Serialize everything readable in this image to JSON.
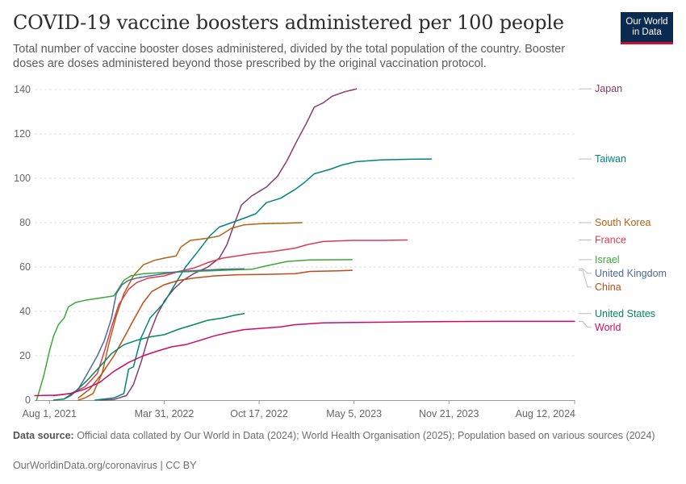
{
  "header": {
    "title": "COVID-19 vaccine boosters administered per 100 people",
    "subtitle": "Total number of vaccine booster doses administered, divided by the total population of the country. Booster doses are doses administered beyond those prescribed by the original vaccination protocol.",
    "logo_line1": "Our World",
    "logo_line2": "in Data"
  },
  "footer": {
    "source_label": "Data source:",
    "source_text": "Official data collated by Our World in Data (2024); World Health Organisation (2025); Population based on various sources (2024)",
    "site": "OurWorldinData.org/coronavirus | CC BY"
  },
  "chart_data": {
    "type": "line",
    "title": "COVID-19 vaccine boosters administered per 100 people",
    "xlabel": "",
    "ylabel": "",
    "ylim": [
      0,
      140
    ],
    "yticks": [
      0,
      20,
      40,
      60,
      80,
      100,
      120,
      140
    ],
    "xlim": [
      "2021-07-01",
      "2024-08-12"
    ],
    "xticks": [
      "2021-08-01",
      "2022-03-31",
      "2022-10-17",
      "2023-05-05",
      "2023-11-21",
      "2024-08-12"
    ],
    "xtick_labels": [
      "Aug 1, 2021",
      "Mar 31, 2022",
      "Oct 17, 2022",
      "May 5, 2023",
      "Nov 21, 2023",
      "Aug 12, 2024"
    ],
    "grid": "horizontal dashed",
    "legend": "right, labels at line ends",
    "series": [
      {
        "name": "Japan",
        "color": "#883a6a",
        "points": [
          [
            "2021-11-15",
            0
          ],
          [
            "2021-12-15",
            0.3
          ],
          [
            "2022-01-10",
            2
          ],
          [
            "2022-01-25",
            7
          ],
          [
            "2022-02-10",
            17
          ],
          [
            "2022-02-25",
            28
          ],
          [
            "2022-03-15",
            38
          ],
          [
            "2022-04-01",
            45
          ],
          [
            "2022-04-20",
            50
          ],
          [
            "2022-05-10",
            54
          ],
          [
            "2022-06-01",
            57
          ],
          [
            "2022-07-01",
            60
          ],
          [
            "2022-07-25",
            64
          ],
          [
            "2022-08-10",
            70
          ],
          [
            "2022-08-25",
            79
          ],
          [
            "2022-09-10",
            88
          ],
          [
            "2022-10-01",
            92
          ],
          [
            "2022-11-01",
            96
          ],
          [
            "2022-11-25",
            101
          ],
          [
            "2022-12-15",
            108
          ],
          [
            "2023-01-05",
            117
          ],
          [
            "2023-01-25",
            125
          ],
          [
            "2023-02-10",
            132
          ],
          [
            "2023-03-01",
            134
          ],
          [
            "2023-03-20",
            137
          ],
          [
            "2023-04-15",
            139
          ],
          [
            "2023-05-05",
            140
          ],
          [
            "2023-05-10",
            140.3
          ]
        ]
      },
      {
        "name": "Taiwan",
        "color": "#00847e",
        "points": [
          [
            "2021-11-05",
            0
          ],
          [
            "2021-12-15",
            1
          ],
          [
            "2022-01-05",
            3
          ],
          [
            "2022-01-15",
            14
          ],
          [
            "2022-01-25",
            15
          ],
          [
            "2022-02-10",
            28
          ],
          [
            "2022-03-01",
            37
          ],
          [
            "2022-03-31",
            44
          ],
          [
            "2022-04-25",
            53
          ],
          [
            "2022-05-15",
            60
          ],
          [
            "2022-06-10",
            67
          ],
          [
            "2022-07-05",
            74
          ],
          [
            "2022-07-25",
            78
          ],
          [
            "2022-08-20",
            80
          ],
          [
            "2022-09-15",
            82
          ],
          [
            "2022-10-10",
            84
          ],
          [
            "2022-11-01",
            89
          ],
          [
            "2022-12-01",
            91
          ],
          [
            "2023-01-01",
            95
          ],
          [
            "2023-01-20",
            98
          ],
          [
            "2023-02-10",
            102
          ],
          [
            "2023-03-15",
            104
          ],
          [
            "2023-04-10",
            106
          ],
          [
            "2023-05-10",
            107.5
          ],
          [
            "2023-07-01",
            108.3
          ],
          [
            "2023-09-01",
            108.6
          ],
          [
            "2023-10-15",
            108.7
          ]
        ]
      },
      {
        "name": "South Korea",
        "color": "#b16214",
        "points": [
          [
            "2021-10-01",
            0
          ],
          [
            "2021-10-15",
            1
          ],
          [
            "2021-11-01",
            3
          ],
          [
            "2021-11-20",
            12
          ],
          [
            "2021-12-05",
            26
          ],
          [
            "2021-12-20",
            38
          ],
          [
            "2022-01-05",
            48
          ],
          [
            "2022-01-25",
            56
          ],
          [
            "2022-02-15",
            61
          ],
          [
            "2022-03-10",
            63
          ],
          [
            "2022-03-31",
            64
          ],
          [
            "2022-04-25",
            65
          ],
          [
            "2022-05-05",
            69
          ],
          [
            "2022-05-25",
            72
          ],
          [
            "2022-07-01",
            73
          ],
          [
            "2022-07-25",
            74
          ],
          [
            "2022-08-20",
            77.5
          ],
          [
            "2022-09-15",
            79
          ],
          [
            "2022-10-20",
            79.5
          ],
          [
            "2022-12-15",
            79.8
          ],
          [
            "2023-01-15",
            80
          ]
        ]
      },
      {
        "name": "France",
        "color": "#d73c50",
        "points": [
          [
            "2021-08-10",
            2
          ],
          [
            "2021-09-15",
            3
          ],
          [
            "2021-10-15",
            6
          ],
          [
            "2021-11-10",
            12
          ],
          [
            "2021-11-25",
            22
          ],
          [
            "2021-12-10",
            33
          ],
          [
            "2021-12-25",
            43
          ],
          [
            "2022-01-15",
            50
          ],
          [
            "2022-02-01",
            53
          ],
          [
            "2022-02-25",
            55
          ],
          [
            "2022-03-31",
            56
          ],
          [
            "2022-05-01",
            58
          ],
          [
            "2022-06-01",
            59.5
          ],
          [
            "2022-07-01",
            62
          ],
          [
            "2022-08-01",
            64
          ],
          [
            "2022-09-01",
            65
          ],
          [
            "2022-10-01",
            66
          ],
          [
            "2022-11-15",
            67
          ],
          [
            "2023-01-01",
            68.5
          ],
          [
            "2023-01-25",
            70
          ],
          [
            "2023-03-01",
            71.5
          ],
          [
            "2023-05-01",
            72
          ],
          [
            "2023-07-01",
            72
          ],
          [
            "2023-08-25",
            72.2
          ]
        ]
      },
      {
        "name": "Israel",
        "color": "#38aa34",
        "points": [
          [
            "2021-07-05",
            0
          ],
          [
            "2021-07-20",
            11
          ],
          [
            "2021-08-01",
            22
          ],
          [
            "2021-08-10",
            29
          ],
          [
            "2021-08-20",
            34
          ],
          [
            "2021-09-01",
            37
          ],
          [
            "2021-09-10",
            42
          ],
          [
            "2021-09-25",
            44
          ],
          [
            "2021-10-15",
            45
          ],
          [
            "2021-11-15",
            46
          ],
          [
            "2021-12-15",
            47
          ],
          [
            "2022-01-05",
            54
          ],
          [
            "2022-01-20",
            56
          ],
          [
            "2022-02-15",
            57
          ],
          [
            "2022-03-31",
            57.5
          ],
          [
            "2022-06-01",
            58
          ],
          [
            "2022-08-01",
            58.5
          ],
          [
            "2022-10-01",
            59
          ],
          [
            "2022-11-01",
            60.5
          ],
          [
            "2022-12-15",
            62.5
          ],
          [
            "2023-02-01",
            63.2
          ],
          [
            "2023-05-01",
            63.3
          ]
        ]
      },
      {
        "name": "United Kingdom",
        "color": "#4c6a9c",
        "points": [
          [
            "2021-09-01",
            0.5
          ],
          [
            "2021-09-15",
            2
          ],
          [
            "2021-10-01",
            5
          ],
          [
            "2021-10-20",
            12
          ],
          [
            "2021-11-10",
            20
          ],
          [
            "2021-11-25",
            27
          ],
          [
            "2021-12-10",
            37
          ],
          [
            "2021-12-20",
            48
          ],
          [
            "2022-01-01",
            52
          ],
          [
            "2022-01-15",
            54
          ],
          [
            "2022-02-01",
            55
          ],
          [
            "2022-03-01",
            56
          ],
          [
            "2022-03-31",
            57
          ],
          [
            "2022-05-01",
            58
          ],
          [
            "2022-06-15",
            58.5
          ],
          [
            "2022-08-01",
            59
          ],
          [
            "2022-09-15",
            59.2
          ]
        ]
      },
      {
        "name": "China",
        "color": "#be4c16",
        "points": [
          [
            "2021-10-01",
            1
          ],
          [
            "2021-10-25",
            5
          ],
          [
            "2021-11-20",
            12
          ],
          [
            "2021-12-15",
            20
          ],
          [
            "2022-01-05",
            28
          ],
          [
            "2022-01-25",
            36
          ],
          [
            "2022-02-15",
            44
          ],
          [
            "2022-03-05",
            49
          ],
          [
            "2022-03-31",
            52
          ],
          [
            "2022-05-01",
            54
          ],
          [
            "2022-06-01",
            55
          ],
          [
            "2022-07-15",
            56
          ],
          [
            "2022-09-01",
            56.5
          ],
          [
            "2022-11-01",
            56.7
          ],
          [
            "2023-01-01",
            57
          ],
          [
            "2023-02-01",
            58
          ],
          [
            "2023-04-01",
            58.3
          ],
          [
            "2023-05-01",
            58.5
          ]
        ]
      },
      {
        "name": "United States",
        "color": "#00875e",
        "points": [
          [
            "2021-08-10",
            0
          ],
          [
            "2021-09-01",
            0.5
          ],
          [
            "2021-09-25",
            4
          ],
          [
            "2021-10-20",
            9
          ],
          [
            "2021-11-15",
            15
          ],
          [
            "2021-12-10",
            21
          ],
          [
            "2022-01-05",
            25
          ],
          [
            "2022-02-01",
            27
          ],
          [
            "2022-03-01",
            28.5
          ],
          [
            "2022-03-31",
            29.5
          ],
          [
            "2022-05-01",
            32
          ],
          [
            "2022-06-01",
            34
          ],
          [
            "2022-07-01",
            36
          ],
          [
            "2022-08-01",
            37
          ],
          [
            "2022-08-25",
            38.2
          ],
          [
            "2022-09-15",
            39
          ]
        ]
      },
      {
        "name": "World",
        "color": "#cf0a66",
        "points": [
          [
            "2021-07-01",
            2
          ],
          [
            "2021-08-15",
            2.2
          ],
          [
            "2021-09-15",
            3
          ],
          [
            "2021-10-15",
            5
          ],
          [
            "2021-11-15",
            8
          ],
          [
            "2021-12-15",
            13
          ],
          [
            "2022-01-15",
            17
          ],
          [
            "2022-02-15",
            20
          ],
          [
            "2022-03-15",
            22
          ],
          [
            "2022-04-15",
            24
          ],
          [
            "2022-05-15",
            25
          ],
          [
            "2022-06-15",
            27
          ],
          [
            "2022-07-15",
            29
          ],
          [
            "2022-08-15",
            30.5
          ],
          [
            "2022-09-15",
            31.8
          ],
          [
            "2022-10-17",
            32.3
          ],
          [
            "2022-12-01",
            33
          ],
          [
            "2023-01-01",
            34
          ],
          [
            "2023-03-01",
            34.8
          ],
          [
            "2023-05-05",
            35
          ],
          [
            "2023-08-01",
            35.2
          ],
          [
            "2023-11-21",
            35.4
          ],
          [
            "2024-03-01",
            35.5
          ],
          [
            "2024-08-12",
            35.5
          ]
        ]
      }
    ]
  }
}
